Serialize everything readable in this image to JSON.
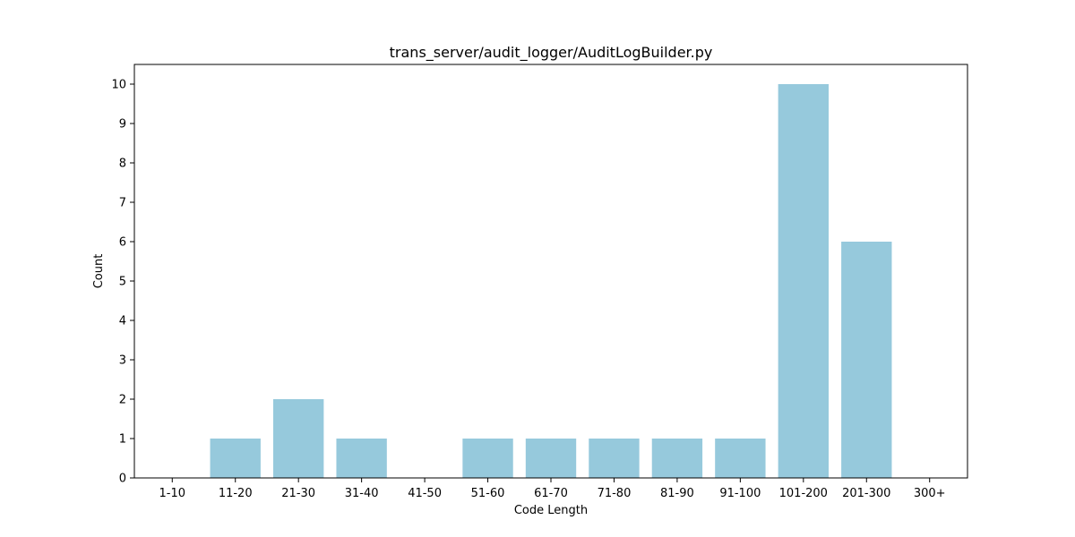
{
  "chart_data": {
    "type": "bar",
    "title": "trans_server/audit_logger/AuditLogBuilder.py",
    "xlabel": "Code Length",
    "ylabel": "Count",
    "categories": [
      "1-10",
      "11-20",
      "21-30",
      "31-40",
      "41-50",
      "51-60",
      "61-70",
      "71-80",
      "81-90",
      "91-100",
      "101-200",
      "201-300",
      "300+"
    ],
    "values": [
      0,
      1,
      2,
      1,
      0,
      1,
      1,
      1,
      1,
      1,
      10,
      6,
      0
    ],
    "ylim": [
      0,
      10.5
    ],
    "yticks": [
      0,
      1,
      2,
      3,
      4,
      5,
      6,
      7,
      8,
      9,
      10
    ],
    "grid": false,
    "legend": "none",
    "bar_color": "#96c9dc"
  }
}
